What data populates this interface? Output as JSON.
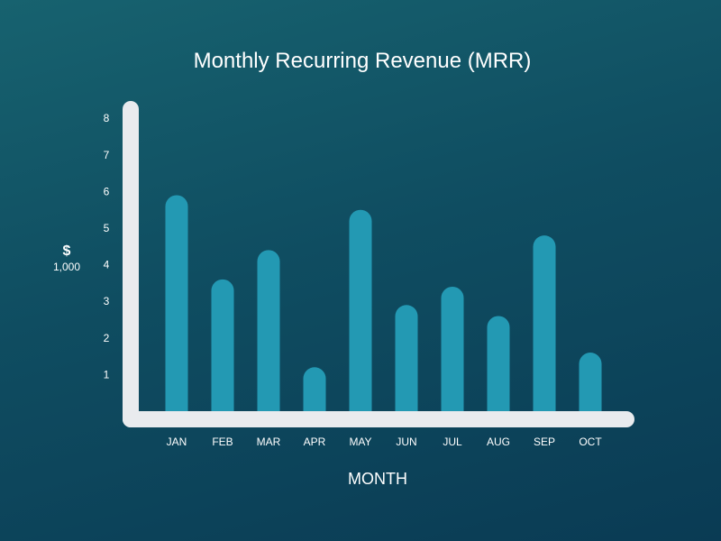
{
  "chart_data": {
    "type": "bar",
    "title": "Monthly Recurring Revenue (MRR)",
    "xlabel": "MONTH",
    "ylabel": "$",
    "ylabel_unit": "1,000",
    "categories": [
      "JAN",
      "FEB",
      "MAR",
      "APR",
      "MAY",
      "JUN",
      "JUL",
      "AUG",
      "SEP",
      "OCT"
    ],
    "values": [
      5.9,
      3.6,
      4.4,
      1.2,
      5.5,
      2.9,
      3.4,
      2.6,
      4.8,
      1.6
    ],
    "y_ticks": [
      "1",
      "2",
      "3",
      "4",
      "5",
      "6",
      "7",
      "8"
    ],
    "ylim": [
      0,
      8.5
    ],
    "grid": false,
    "legend": "none"
  },
  "colors": {
    "bar": "#2399b3",
    "axis": "#e9ebee",
    "text": "#ffffff"
  }
}
